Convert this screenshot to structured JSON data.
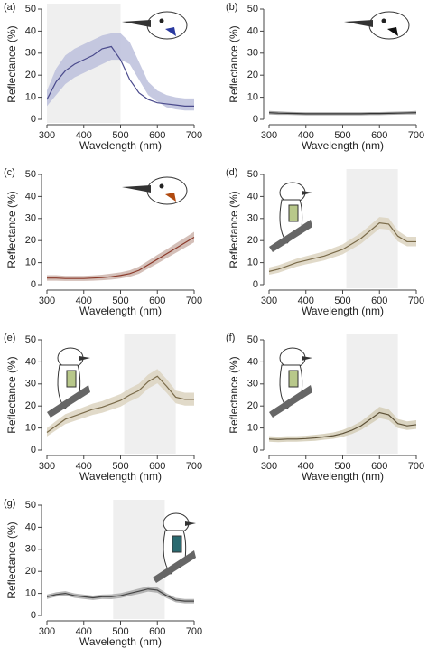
{
  "chart_data": [
    {
      "type": "line",
      "panel": "(a)",
      "xlabel": "Wavelength (nm)",
      "ylabel": "Reflectance (%)",
      "x": [
        300,
        325,
        350,
        375,
        400,
        425,
        450,
        475,
        500,
        525,
        550,
        575,
        600,
        625,
        650,
        675,
        700
      ],
      "series": [
        {
          "color": "#4a4a8c",
          "band_color": "#bcc0dc",
          "values": [
            9,
            17,
            22,
            25,
            27,
            29,
            32,
            33,
            27,
            18,
            12,
            9,
            7.5,
            7,
            6.5,
            6,
            6
          ],
          "upper": [
            13,
            23,
            29,
            32,
            34,
            36,
            38,
            39,
            39,
            35,
            26,
            17,
            13,
            11,
            10,
            9.5,
            9.5
          ],
          "lower": [
            6,
            11,
            16,
            19,
            21,
            23,
            25,
            27,
            27,
            25,
            18,
            11,
            8,
            5.5,
            4.5,
            4,
            4
          ]
        }
      ],
      "highlight": [
        300,
        500
      ],
      "xlim": [
        300,
        700
      ],
      "ylim": [
        0,
        50
      ],
      "xticks": [
        300,
        400,
        500,
        600,
        700
      ],
      "yticks": [
        0,
        10,
        20,
        30,
        40,
        50
      ]
    },
    {
      "type": "line",
      "panel": "(b)",
      "xlabel": "Wavelength (nm)",
      "ylabel": "Reflectance (%)",
      "x": [
        300,
        325,
        350,
        375,
        400,
        425,
        450,
        475,
        500,
        525,
        550,
        575,
        600,
        625,
        650,
        675,
        700
      ],
      "series": [
        {
          "color": "#333333",
          "band_color": "#9a9a9a",
          "values": [
            3,
            2.8,
            2.7,
            2.6,
            2.5,
            2.5,
            2.5,
            2.5,
            2.5,
            2.5,
            2.5,
            2.6,
            2.6,
            2.7,
            2.8,
            2.9,
            3
          ],
          "upper": [
            3.8,
            3.6,
            3.4,
            3.3,
            3.2,
            3.2,
            3.2,
            3.2,
            3.2,
            3.2,
            3.2,
            3.3,
            3.3,
            3.4,
            3.5,
            3.6,
            3.8
          ],
          "lower": [
            2.2,
            2,
            2,
            1.9,
            1.8,
            1.8,
            1.8,
            1.8,
            1.8,
            1.8,
            1.8,
            1.9,
            1.9,
            2,
            2.1,
            2.2,
            2.2
          ]
        }
      ],
      "xlim": [
        300,
        700
      ],
      "ylim": [
        0,
        50
      ],
      "xticks": [
        300,
        400,
        500,
        600,
        700
      ],
      "yticks": [
        0,
        10,
        20,
        30,
        40,
        50
      ]
    },
    {
      "type": "line",
      "panel": "(c)",
      "xlabel": "Wavelength (nm)",
      "ylabel": "Reflectance (%)",
      "x": [
        300,
        325,
        350,
        375,
        400,
        425,
        450,
        475,
        500,
        525,
        550,
        575,
        600,
        625,
        650,
        675,
        700
      ],
      "series": [
        {
          "color": "#8b3a2a",
          "band_color": "#cdb4ac",
          "values": [
            3,
            3,
            2.8,
            2.8,
            2.8,
            3,
            3.2,
            3.6,
            4.2,
            5,
            6.5,
            9,
            11.5,
            14,
            16.5,
            19,
            21.5
          ],
          "upper": [
            4.3,
            4.3,
            4,
            4,
            4,
            4.2,
            4.5,
            5,
            5.6,
            6.5,
            8.2,
            10.8,
            13.5,
            16,
            18.7,
            21.3,
            24
          ],
          "lower": [
            1.8,
            1.8,
            1.7,
            1.7,
            1.7,
            1.8,
            2,
            2.3,
            2.8,
            3.6,
            4.9,
            7.3,
            9.6,
            12,
            14.4,
            16.8,
            19.2
          ]
        }
      ],
      "xlim": [
        300,
        700
      ],
      "ylim": [
        0,
        50
      ],
      "xticks": [
        300,
        400,
        500,
        600,
        700
      ],
      "yticks": [
        0,
        10,
        20,
        30,
        40,
        50
      ]
    },
    {
      "type": "line",
      "panel": "(d)",
      "xlabel": "Wavelength (nm)",
      "ylabel": "Reflectance (%)",
      "x": [
        300,
        325,
        350,
        375,
        400,
        425,
        450,
        475,
        500,
        525,
        550,
        575,
        600,
        625,
        650,
        675,
        700
      ],
      "series": [
        {
          "color": "#7a6b4a",
          "band_color": "#dcd4c0",
          "values": [
            6,
            7,
            8.5,
            10,
            11,
            12,
            13,
            14.5,
            16,
            18.5,
            21,
            24.5,
            28,
            27.5,
            22,
            19.5,
            19.5
          ],
          "upper": [
            7.8,
            8.8,
            10.3,
            11.8,
            12.9,
            14,
            15.1,
            16.7,
            18.3,
            20.9,
            23.5,
            27.1,
            30.7,
            30.2,
            24.5,
            21.7,
            21.7
          ],
          "lower": [
            4.5,
            5.4,
            6.8,
            8.2,
            9.2,
            10.1,
            11,
            12.4,
            13.8,
            16.2,
            18.6,
            22,
            25.4,
            25,
            19.6,
            17.4,
            17.4
          ]
        }
      ],
      "highlight": [
        510,
        650
      ],
      "xlim": [
        300,
        700
      ],
      "ylim": [
        0,
        50
      ],
      "xticks": [
        300,
        400,
        500,
        600,
        700
      ],
      "yticks": [
        0,
        10,
        20,
        30,
        40,
        50
      ]
    },
    {
      "type": "line",
      "panel": "(e)",
      "xlabel": "Wavelength (nm)",
      "ylabel": "Reflectance (%)",
      "x": [
        300,
        325,
        350,
        375,
        400,
        425,
        450,
        475,
        500,
        525,
        550,
        575,
        600,
        625,
        650,
        675,
        700
      ],
      "series": [
        {
          "color": "#7a6b4a",
          "band_color": "#dcd4c0",
          "values": [
            8,
            11,
            14,
            15.5,
            17,
            18.5,
            19.5,
            21,
            22.5,
            25,
            27,
            31,
            33.5,
            29,
            24,
            23,
            23
          ],
          "upper": [
            10,
            13.2,
            16.3,
            17.9,
            19.5,
            21.1,
            22.2,
            23.8,
            25.4,
            28,
            30.1,
            34.2,
            36.8,
            32.2,
            27,
            26,
            26
          ],
          "lower": [
            6.2,
            9,
            11.8,
            13.2,
            14.6,
            16,
            16.9,
            18.3,
            19.7,
            22.1,
            24,
            27.9,
            30.3,
            26,
            21.2,
            20.2,
            20.2
          ]
        }
      ],
      "highlight": [
        510,
        650
      ],
      "xlim": [
        300,
        700
      ],
      "ylim": [
        0,
        50
      ],
      "xticks": [
        300,
        400,
        500,
        600,
        700
      ],
      "yticks": [
        0,
        10,
        20,
        30,
        40,
        50
      ]
    },
    {
      "type": "line",
      "panel": "(f)",
      "xlabel": "Wavelength (nm)",
      "ylabel": "Reflectance (%)",
      "x": [
        300,
        325,
        350,
        375,
        400,
        425,
        450,
        475,
        500,
        525,
        550,
        575,
        600,
        625,
        650,
        675,
        700
      ],
      "series": [
        {
          "color": "#5e5238",
          "band_color": "#d4ccb6",
          "values": [
            5,
            4.8,
            5,
            5,
            5.2,
            5.5,
            6,
            6.5,
            7.5,
            9,
            11,
            14,
            17,
            16,
            12,
            11,
            11.5
          ],
          "upper": [
            6.3,
            6.1,
            6.3,
            6.3,
            6.5,
            6.9,
            7.4,
            8,
            9.1,
            10.8,
            13,
            16.3,
            19.6,
            18.5,
            14.1,
            13,
            13.5
          ],
          "lower": [
            3.8,
            3.6,
            3.8,
            3.8,
            4,
            4.2,
            4.7,
            5.1,
            6,
            7.3,
            9.1,
            11.8,
            14.5,
            13.6,
            10,
            9.1,
            9.6
          ]
        }
      ],
      "highlight": [
        510,
        650
      ],
      "xlim": [
        300,
        700
      ],
      "ylim": [
        0,
        50
      ],
      "xticks": [
        300,
        400,
        500,
        600,
        700
      ],
      "yticks": [
        0,
        10,
        20,
        30,
        40,
        50
      ]
    },
    {
      "type": "line",
      "panel": "(g)",
      "xlabel": "Wavelength (nm)",
      "ylabel": "Reflectance (%)",
      "x": [
        300,
        325,
        350,
        375,
        400,
        425,
        450,
        475,
        500,
        525,
        550,
        575,
        600,
        625,
        650,
        675,
        700
      ],
      "series": [
        {
          "color": "#444444",
          "band_color": "#a8a8a8",
          "values": [
            8.5,
            9.5,
            10,
            9,
            8.5,
            8,
            8.5,
            8.5,
            9,
            10,
            11,
            12,
            11.5,
            9,
            7,
            6.5,
            6.5
          ],
          "upper": [
            9.5,
            10.5,
            11,
            10,
            9.5,
            9,
            9.5,
            9.6,
            10.1,
            11.1,
            12.2,
            13.2,
            12.7,
            10.1,
            8,
            7.5,
            7.5
          ],
          "lower": [
            7.5,
            8.5,
            9,
            8,
            7.5,
            7,
            7.5,
            7.4,
            7.9,
            8.9,
            9.8,
            10.8,
            10.3,
            7.9,
            6,
            5.5,
            5.5
          ]
        }
      ],
      "highlight": [
        480,
        620
      ],
      "xlim": [
        300,
        700
      ],
      "ylim": [
        0,
        50
      ],
      "xticks": [
        300,
        400,
        500,
        600,
        700
      ],
      "yticks": [
        0,
        10,
        20,
        30,
        40,
        50
      ]
    }
  ]
}
